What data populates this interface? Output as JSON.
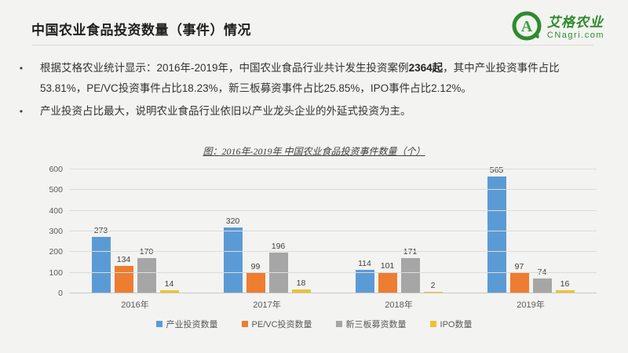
{
  "header": {
    "title": "中国农业食品投资数量（事件）情况"
  },
  "logo": {
    "brand": "艾格农业",
    "domain": "CNagri.com",
    "letter": "A",
    "color": "#2e8b2e"
  },
  "bullets": {
    "marker": "•",
    "b1_pre": "根据艾格农业统计显示：2016年-2019年，中国农业食品行业共计发生投资案例",
    "b1_bold": "2364起",
    "b1_post": "，其中产业投资事件占比53.81%，PE/VC投资事件占比18.23%，新三板募资事件占比25.85%，IPO事件占比2.12%。",
    "b2": "产业投资占比最大，说明农业食品行业依旧以产业龙头企业的外延式投资为主。"
  },
  "chart_data": {
    "type": "bar",
    "title": "图：2016年-2019年 中国农业食品投资事件数量（个）",
    "categories": [
      "2016年",
      "2017年",
      "2018年",
      "2019年"
    ],
    "series": [
      {
        "name": "产业投资数量",
        "color": "#5b9bd5",
        "values": [
          273,
          320,
          114,
          565
        ]
      },
      {
        "name": "PE/VC投资数量",
        "color": "#ed7d31",
        "values": [
          134,
          99,
          101,
          97
        ]
      },
      {
        "name": "新三板募资数量",
        "color": "#a6a6a6",
        "values": [
          170,
          196,
          171,
          74
        ]
      },
      {
        "name": "IPO数量",
        "color": "#eec233",
        "values": [
          14,
          18,
          2,
          16
        ]
      }
    ],
    "xlabel": "",
    "ylabel": "",
    "ylim": [
      0,
      600
    ],
    "ytick_step": 100,
    "grid": true,
    "legend_position": "bottom"
  }
}
